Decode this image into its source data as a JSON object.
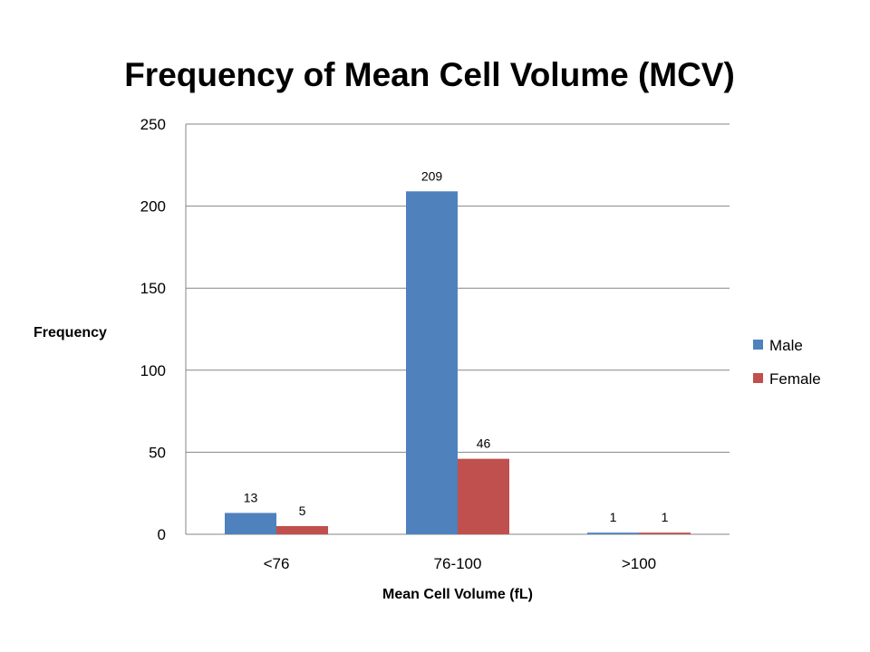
{
  "chart_data": {
    "type": "bar",
    "title": "Frequency of Mean Cell Volume (MCV)",
    "xlabel": "Mean Cell Volume (fL)",
    "ylabel": "Frequency",
    "categories": [
      "<76",
      "76-100",
      ">100"
    ],
    "series": [
      {
        "name": "Male",
        "values": [
          13,
          209,
          1
        ],
        "color": "#4F81BD"
      },
      {
        "name": "Female",
        "values": [
          5,
          46,
          1
        ],
        "color": "#C0504D"
      }
    ],
    "ylim": [
      0,
      250
    ],
    "yticks": [
      0,
      50,
      100,
      150,
      200,
      250
    ],
    "grid": true,
    "legend_position": "right",
    "data_labels": true
  }
}
